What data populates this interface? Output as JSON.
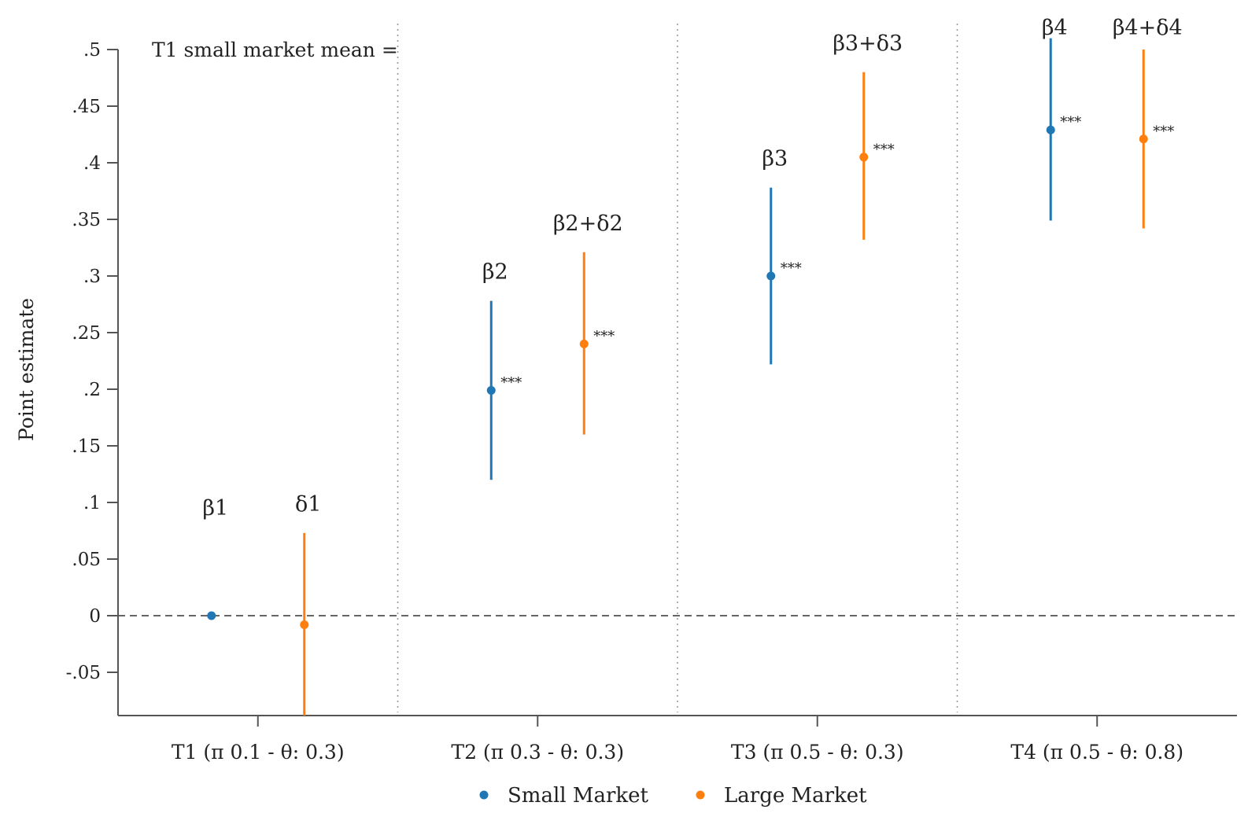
{
  "chart_data": {
    "type": "scatter",
    "ylabel": "Point estimate",
    "ylim": [
      -0.09,
      0.5
    ],
    "yticks": [
      ".5",
      ".45",
      ".4",
      ".35",
      ".3",
      ".25",
      ".2",
      ".15",
      ".1",
      ".05",
      "0",
      "-.05"
    ],
    "ytick_values": [
      0.5,
      0.45,
      0.4,
      0.35,
      0.3,
      0.25,
      0.2,
      0.15,
      0.1,
      0.05,
      0,
      -0.05
    ],
    "categories": [
      "T1 (π 0.1 - θ: 0.3)",
      "T2 (π 0.3 - θ: 0.3)",
      "T3 (π 0.5 - θ: 0.3)",
      "T4 (π 0.5 - θ: 0.8)"
    ],
    "note": "T1 small market mean =",
    "reference_line": 0,
    "series": [
      {
        "name": "Small Market",
        "color": "#1f77b4",
        "values": [
          0,
          0.199,
          0.3,
          0.429
        ],
        "ci_low": [
          null,
          0.12,
          0.222,
          0.349
        ],
        "ci_high": [
          null,
          0.278,
          0.378,
          0.51
        ],
        "labels": [
          "β1",
          "β2",
          "β3",
          "β4"
        ],
        "significance": [
          "",
          "***",
          "***",
          "***"
        ]
      },
      {
        "name": "Large Market",
        "color": "#ff7f0e",
        "values": [
          -0.008,
          0.24,
          0.405,
          0.421
        ],
        "ci_low": [
          -0.09,
          0.16,
          0.332,
          0.342
        ],
        "ci_high": [
          0.073,
          0.321,
          0.48,
          0.5
        ],
        "labels": [
          "δ1",
          "β2+δ2",
          "β3+δ3",
          "β4+δ4"
        ],
        "significance": [
          "",
          "***",
          "***",
          "***"
        ]
      }
    ],
    "legend_position": "bottom",
    "grid": false,
    "group_separators": "dotted"
  }
}
